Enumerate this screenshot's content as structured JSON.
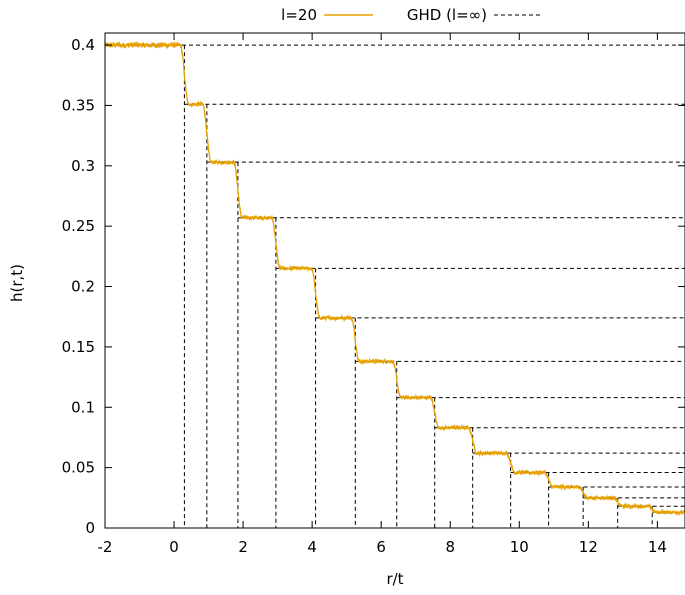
{
  "chart_data": {
    "type": "line",
    "xlabel": "r/t",
    "ylabel": "h(r,t)",
    "xlim": [
      -2,
      14.8
    ],
    "ylim": [
      0,
      0.41
    ],
    "xticks": [
      "-2",
      "0",
      "2",
      "4",
      "6",
      "8",
      "10",
      "12",
      "14"
    ],
    "xtick_values": [
      -2,
      0,
      2,
      4,
      6,
      8,
      10,
      12,
      14
    ],
    "yticks": [
      "0",
      "0.05",
      "0.1",
      "0.15",
      "0.2",
      "0.25",
      "0.3",
      "0.35",
      "0.4"
    ],
    "ytick_values": [
      0,
      0.05,
      0.1,
      0.15,
      0.2,
      0.25,
      0.3,
      0.35,
      0.4
    ],
    "grid": false,
    "legend_position": "top-center",
    "series": [
      {
        "name": "l=20",
        "color": "#e6a000",
        "style": "solid",
        "plateaus": [
          {
            "x_start": -2.0,
            "x_end": 0.3,
            "y": 0.4
          },
          {
            "x_start": 0.3,
            "x_end": 0.95,
            "y": 0.351
          },
          {
            "x_start": 0.95,
            "x_end": 1.85,
            "y": 0.303
          },
          {
            "x_start": 1.85,
            "x_end": 2.95,
            "y": 0.257
          },
          {
            "x_start": 2.95,
            "x_end": 4.1,
            "y": 0.215
          },
          {
            "x_start": 4.1,
            "x_end": 5.25,
            "y": 0.174
          },
          {
            "x_start": 5.25,
            "x_end": 6.45,
            "y": 0.138
          },
          {
            "x_start": 6.45,
            "x_end": 7.55,
            "y": 0.108
          },
          {
            "x_start": 7.55,
            "x_end": 8.65,
            "y": 0.083
          },
          {
            "x_start": 8.65,
            "x_end": 9.75,
            "y": 0.062
          },
          {
            "x_start": 9.75,
            "x_end": 10.85,
            "y": 0.046
          },
          {
            "x_start": 10.85,
            "x_end": 11.85,
            "y": 0.034
          },
          {
            "x_start": 11.85,
            "x_end": 12.85,
            "y": 0.025
          },
          {
            "x_start": 12.85,
            "x_end": 13.85,
            "y": 0.018
          },
          {
            "x_start": 13.85,
            "x_end": 14.8,
            "y": 0.013
          }
        ]
      },
      {
        "name": "GHD (l=∞)",
        "color": "#000000",
        "style": "dashed",
        "levels": [
          0.4,
          0.351,
          0.303,
          0.257,
          0.215,
          0.174,
          0.138,
          0.108,
          0.083,
          0.062,
          0.046,
          0.034,
          0.025,
          0.018,
          0.013
        ],
        "step_positions": [
          0.3,
          0.95,
          1.85,
          2.95,
          4.1,
          5.25,
          6.45,
          7.55,
          8.65,
          9.75,
          10.85,
          11.85,
          12.85,
          13.85
        ]
      }
    ]
  }
}
